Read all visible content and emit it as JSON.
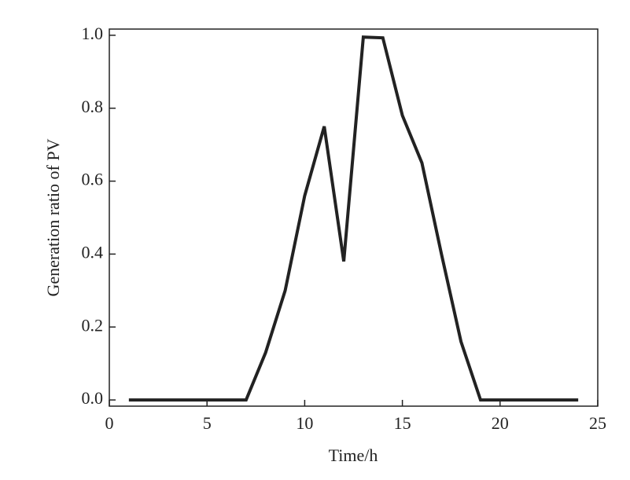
{
  "chart_data": {
    "type": "line",
    "x_label": "Time/h",
    "y_label": "Generation ratio of PV",
    "x": [
      1,
      2,
      3,
      4,
      5,
      6,
      7,
      8,
      9,
      10,
      11,
      12,
      13,
      14,
      15,
      16,
      17,
      18,
      19,
      20,
      21,
      22,
      23,
      24
    ],
    "series": [
      {
        "color": "#222222",
        "values": [
          0,
          0,
          0,
          0,
          0,
          0,
          0,
          0.13,
          0.3,
          0.56,
          0.75,
          0.38,
          0.995,
          0.993,
          0.78,
          0.65,
          0.4,
          0.16,
          0,
          0,
          0,
          0,
          0,
          0
        ]
      }
    ],
    "xlim": [
      0,
      25
    ],
    "ylim": [
      -0.017,
      1.017
    ],
    "xticks": [
      0,
      5,
      10,
      15,
      20,
      25
    ],
    "yticks": [
      {
        "value": 0,
        "label": "0.0"
      },
      {
        "value": 0.2,
        "label": "0.2"
      },
      {
        "value": 0.4,
        "label": "0.4"
      },
      {
        "value": 0.6,
        "label": "0.6"
      },
      {
        "value": 0.8,
        "label": "0.8"
      },
      {
        "value": 1,
        "label": "1.0"
      }
    ]
  }
}
